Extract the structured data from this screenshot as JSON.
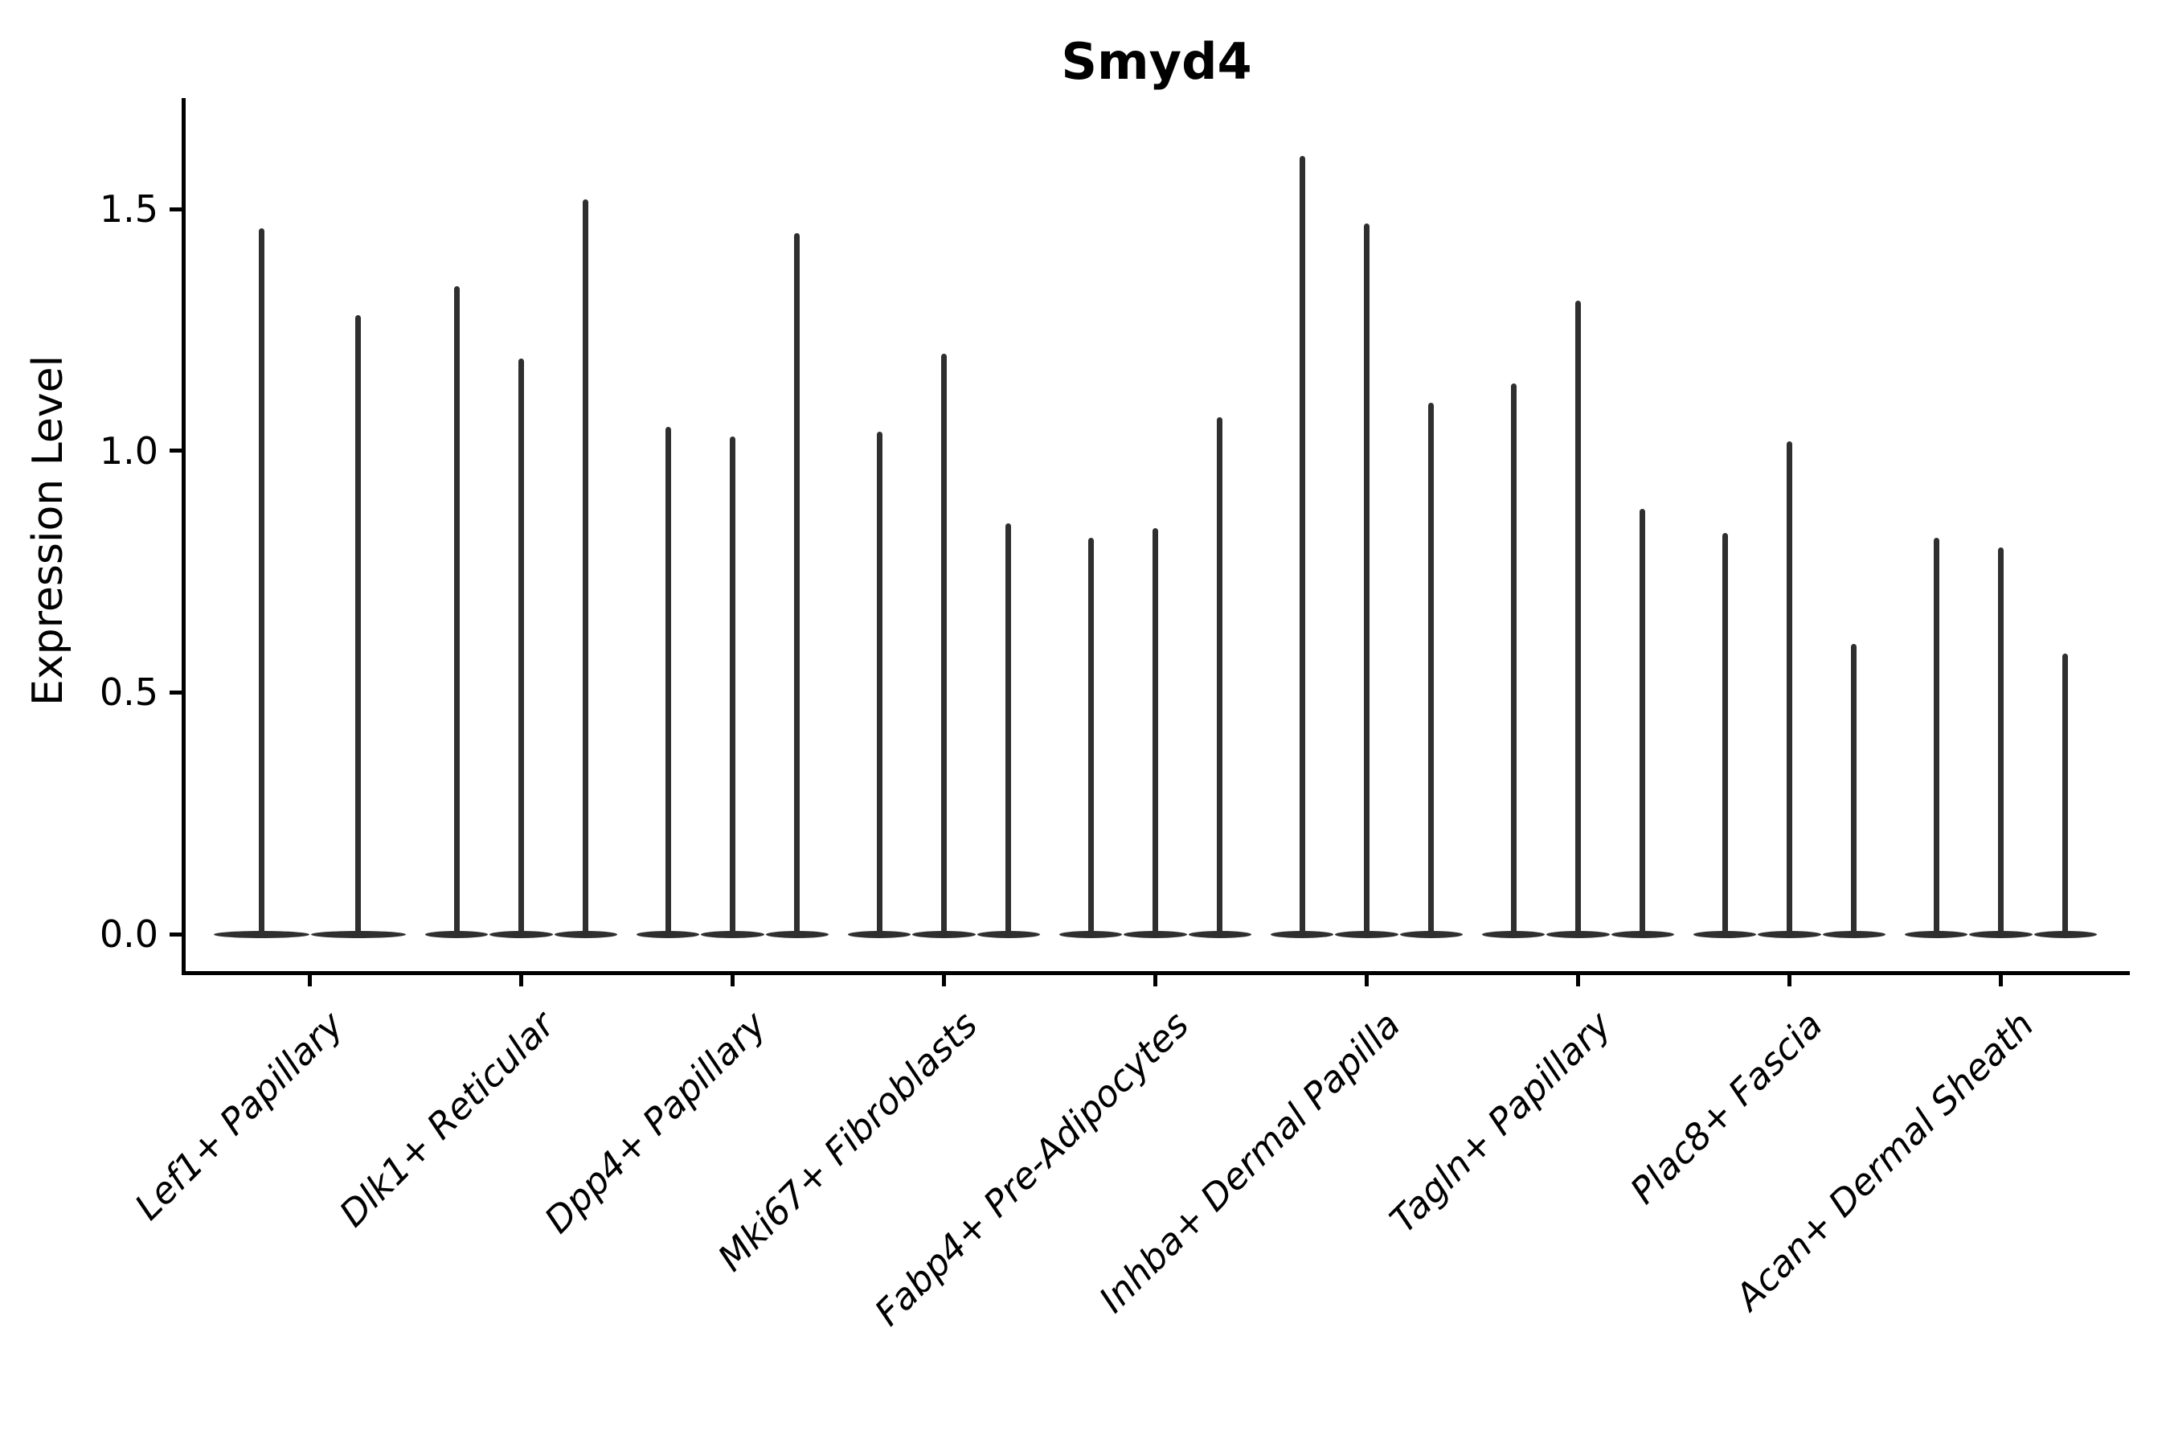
{
  "title": "Smyd4",
  "axes": {
    "ylabel": "Expression Level",
    "xlabel": ""
  },
  "chart_data": {
    "type": "violin",
    "title": "Smyd4",
    "xlabel": "",
    "ylabel": "Expression Level",
    "ylim": [
      -0.08,
      1.72
    ],
    "yticks": [
      0.0,
      0.5,
      1.0,
      1.5
    ],
    "grid": false,
    "legend": "none",
    "violin_color": "#2f2f2f",
    "shape_note": "each violin is a wide flat lens of density at expression 0 with a thin vertical spike reaching the max expression value",
    "categories": [
      "Lef1+ Papillary",
      "Dlk1+ Reticular",
      "Dpp4+ Papillary",
      "Mki67+ Fibroblasts",
      "Fabp4+ Pre-Adipocytes",
      "Inhba+ Dermal Papilla",
      "Tagln+ Papillary",
      "Plac8+ Fascia",
      "Acan+ Dermal Sheath"
    ],
    "series": [
      {
        "category": "Lef1+ Papillary",
        "violin_max_expression": [
          1.46,
          1.28
        ]
      },
      {
        "category": "Dlk1+ Reticular",
        "violin_max_expression": [
          1.34,
          1.19,
          1.52
        ]
      },
      {
        "category": "Dpp4+ Papillary",
        "violin_max_expression": [
          1.05,
          1.03,
          1.45
        ]
      },
      {
        "category": "Mki67+ Fibroblasts",
        "violin_max_expression": [
          1.04,
          1.2,
          0.85
        ]
      },
      {
        "category": "Fabp4+ Pre-Adipocytes",
        "violin_max_expression": [
          0.82,
          0.84,
          1.07
        ]
      },
      {
        "category": "Inhba+ Dermal Papilla",
        "violin_max_expression": [
          1.61,
          1.47,
          1.1
        ]
      },
      {
        "category": "Tagln+ Papillary",
        "violin_max_expression": [
          1.14,
          1.31,
          0.88
        ]
      },
      {
        "category": "Plac8+ Fascia",
        "violin_max_expression": [
          0.83,
          1.02,
          0.6
        ]
      },
      {
        "category": "Acan+ Dermal Sheath",
        "violin_max_expression": [
          0.82,
          0.8,
          0.58
        ]
      }
    ]
  }
}
